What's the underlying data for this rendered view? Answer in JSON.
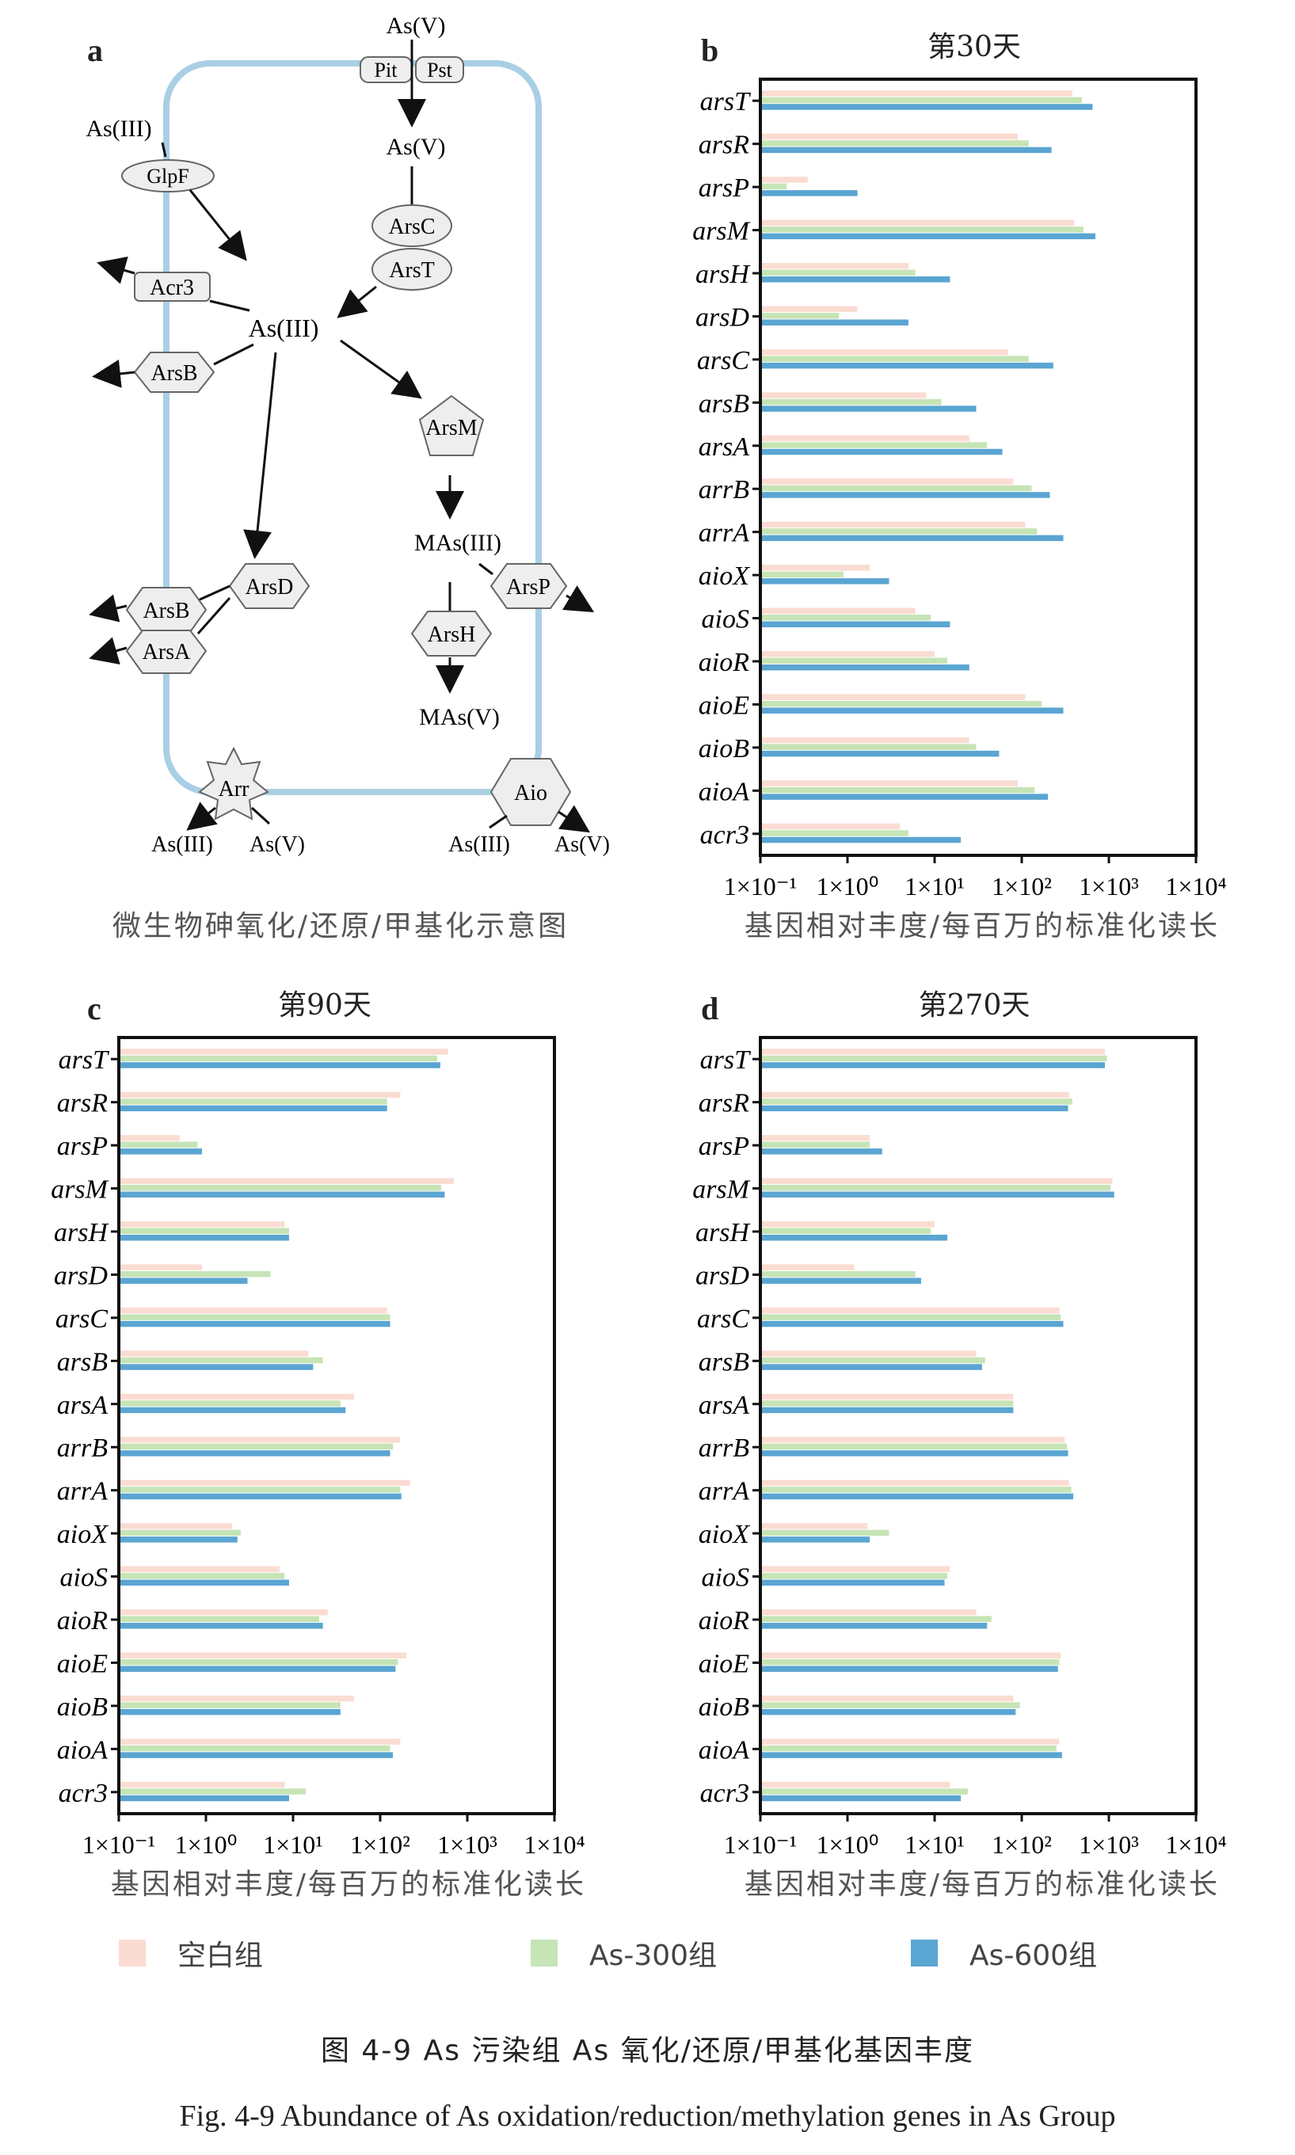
{
  "panel_letters": {
    "a": "a",
    "b": "b",
    "c": "c",
    "d": "d"
  },
  "captions": {
    "diagram": "微生物砷氧化/还原/甲基化示意图",
    "axis": "基因相对丰度/每百万的标准化读长"
  },
  "legend": [
    {
      "name": "空白组",
      "color": "#fbdcd2"
    },
    {
      "name": "As-300组",
      "color": "#c6e4b6"
    },
    {
      "name": "As-600组",
      "color": "#5aa5d2"
    }
  ],
  "figure_caption_zh": "图 4-9 As 污染组 As 氧化/还原/甲基化基因丰度",
  "figure_caption_en": "Fig. 4-9 Abundance of As oxidation/reduction/methylation genes in As Group",
  "diagram": {
    "labels": {
      "as_v_top": "As(V)",
      "pit": "Pit",
      "pst": "Pst",
      "as_v_in": "As(V)",
      "as_iii_top": "As(III)",
      "glpf": "GlpF",
      "arsc": "ArsC",
      "arst": "ArsT",
      "acr3": "Acr3",
      "as_iii_center": "As(III)",
      "arsb1": "ArsB",
      "arsm": "ArsM",
      "mas_iii": "MAs(III)",
      "arsp": "ArsP",
      "arsd": "ArsD",
      "arsb2": "ArsB",
      "arsa": "ArsA",
      "arsh": "ArsH",
      "mas_v": "MAs(V)",
      "arr": "Arr",
      "aio": "Aio",
      "arr_iii": "As(III)",
      "arr_v": "As(V)",
      "aio_iii": "As(III)",
      "aio_v": "As(V)"
    }
  },
  "chart_data": [
    {
      "type": "bar",
      "title": "第30天",
      "orientation": "horizontal",
      "xscale": "log",
      "xlim": [
        0.1,
        10000
      ],
      "xticks": [
        "1×10⁻¹",
        "1×10⁰",
        "1×10¹",
        "1×10²",
        "1×10³",
        "1×10⁴"
      ],
      "xlabel": "基因相对丰度/每百万的标准化读长",
      "categories": [
        "arsT",
        "arsR",
        "arsP",
        "arsM",
        "arsH",
        "arsD",
        "arsC",
        "arsB",
        "arsA",
        "arrB",
        "arrA",
        "aioX",
        "aioS",
        "aioR",
        "aioE",
        "aioB",
        "aioA",
        "acr3"
      ],
      "series": [
        {
          "name": "空白组",
          "values": [
            380,
            90,
            0.35,
            400,
            5,
            1.3,
            70,
            8,
            25,
            80,
            110,
            1.8,
            6,
            10,
            110,
            25,
            90,
            4
          ]
        },
        {
          "name": "As-300组",
          "values": [
            490,
            120,
            0.2,
            510,
            6,
            0.8,
            120,
            12,
            40,
            130,
            150,
            0.9,
            9,
            14,
            170,
            30,
            140,
            5
          ]
        },
        {
          "name": "As-600组",
          "values": [
            650,
            220,
            1.3,
            700,
            15,
            5,
            230,
            30,
            60,
            210,
            300,
            3,
            15,
            25,
            300,
            55,
            200,
            20
          ]
        }
      ]
    },
    {
      "type": "bar",
      "title": "第90天",
      "orientation": "horizontal",
      "xscale": "log",
      "xlim": [
        0.1,
        10000
      ],
      "xticks": [
        "1×10⁻¹",
        "1×10⁰",
        "1×10¹",
        "1×10²",
        "1×10³",
        "1×10⁴"
      ],
      "xlabel": "基因相对丰度/每百万的标准化读长",
      "categories": [
        "arsT",
        "arsR",
        "arsP",
        "arsM",
        "arsH",
        "arsD",
        "arsC",
        "arsB",
        "arsA",
        "arrB",
        "arrA",
        "aioX",
        "aioS",
        "aioR",
        "aioE",
        "aioB",
        "aioA",
        "acr3"
      ],
      "series": [
        {
          "name": "空白组",
          "values": [
            600,
            170,
            0.5,
            700,
            8,
            0.9,
            120,
            15,
            50,
            170,
            220,
            2,
            7,
            25,
            200,
            50,
            170,
            8
          ]
        },
        {
          "name": "As-300组",
          "values": [
            450,
            120,
            0.8,
            500,
            9,
            5.5,
            130,
            22,
            35,
            140,
            170,
            2.5,
            8,
            20,
            160,
            35,
            130,
            14
          ]
        },
        {
          "name": "As-600组",
          "values": [
            490,
            120,
            0.9,
            550,
            9,
            3,
            130,
            17,
            40,
            130,
            175,
            2.3,
            9,
            22,
            150,
            35,
            140,
            9
          ]
        }
      ]
    },
    {
      "type": "bar",
      "title": "第270天",
      "orientation": "horizontal",
      "xscale": "log",
      "xlim": [
        0.1,
        10000
      ],
      "xticks": [
        "1×10⁻¹",
        "1×10⁰",
        "1×10¹",
        "1×10²",
        "1×10³",
        "1×10⁴"
      ],
      "xlabel": "基因相对丰度/每百万的标准化读长",
      "categories": [
        "arsT",
        "arsR",
        "arsP",
        "arsM",
        "arsH",
        "arsD",
        "arsC",
        "arsB",
        "arsA",
        "arrB",
        "arrA",
        "aioX",
        "aioS",
        "aioR",
        "aioE",
        "aioB",
        "aioA",
        "acr3"
      ],
      "series": [
        {
          "name": "空白组",
          "values": [
            900,
            350,
            1.8,
            1100,
            10,
            1.2,
            270,
            30,
            80,
            310,
            350,
            1.7,
            15,
            30,
            280,
            80,
            270,
            15
          ]
        },
        {
          "name": "As-300组",
          "values": [
            950,
            380,
            1.8,
            1050,
            9,
            6,
            280,
            38,
            80,
            330,
            370,
            3,
            14,
            45,
            270,
            95,
            250,
            24
          ]
        },
        {
          "name": "As-600组",
          "values": [
            900,
            340,
            2.5,
            1150,
            14,
            7,
            300,
            35,
            80,
            340,
            390,
            1.8,
            13,
            40,
            260,
            85,
            290,
            20
          ]
        }
      ]
    }
  ]
}
